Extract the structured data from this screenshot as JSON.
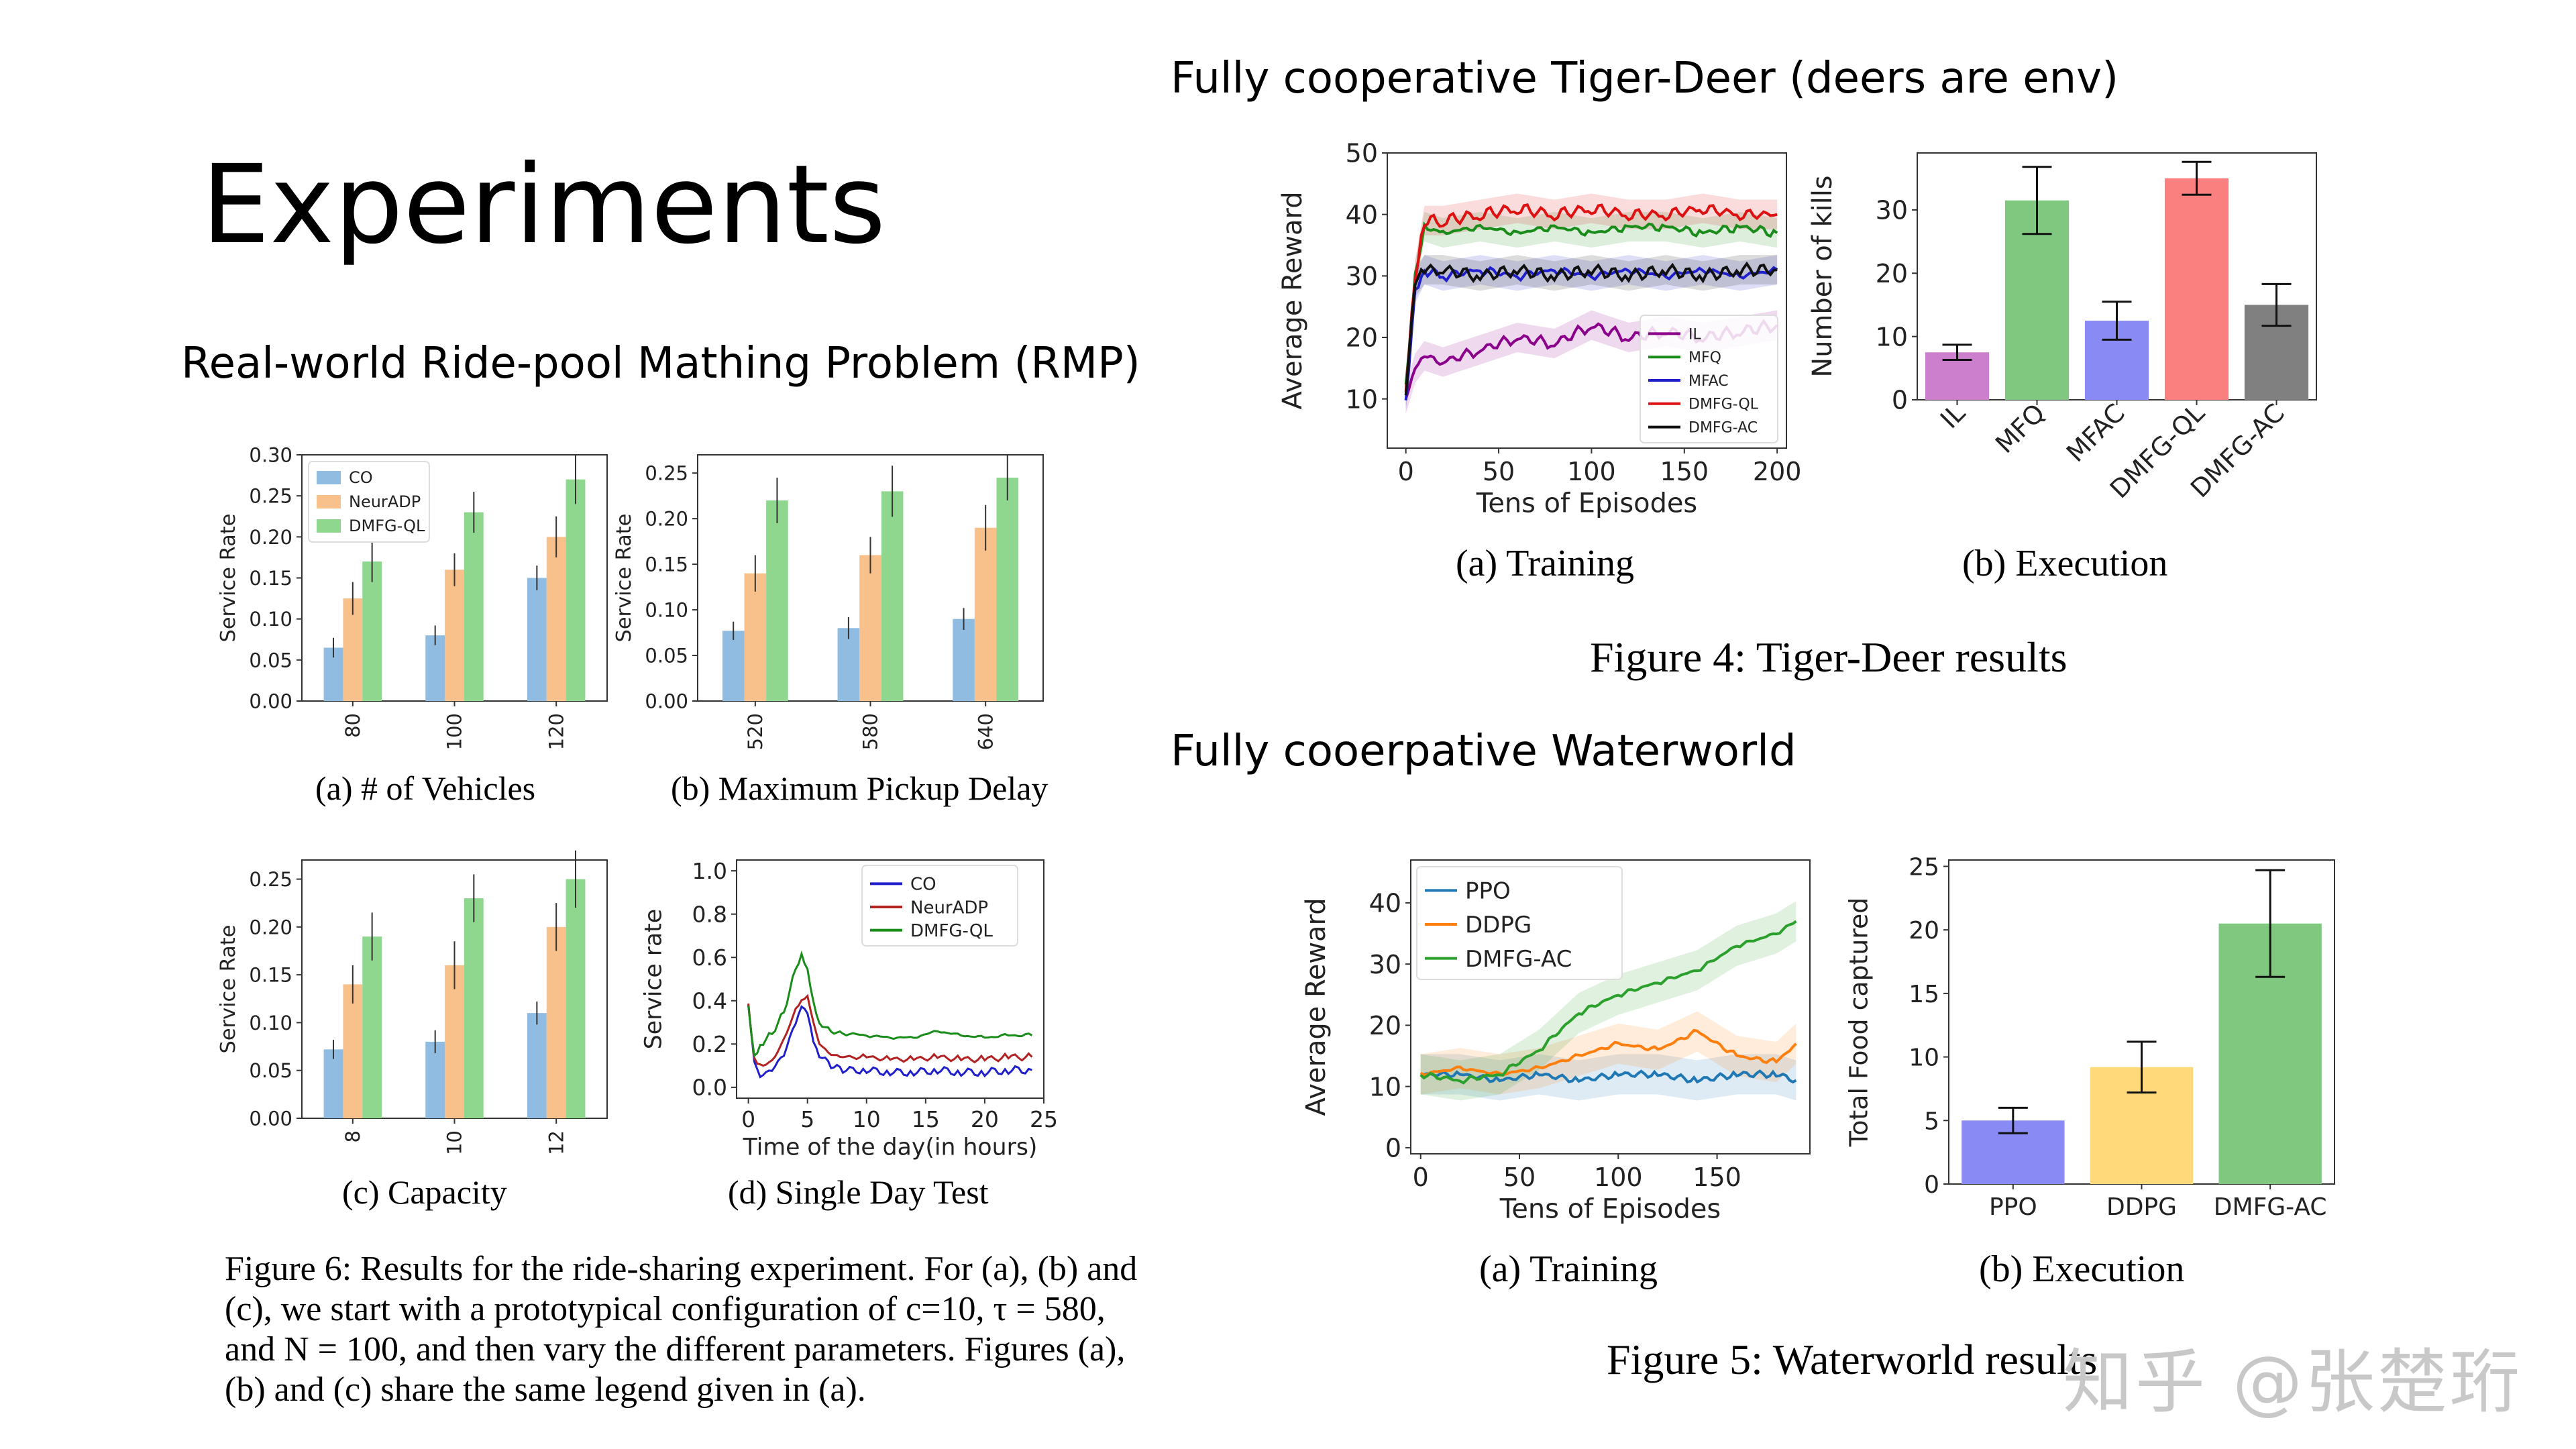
{
  "slide": {
    "title": "Experiments",
    "rmp_heading": "Real-world Ride-pool Mathing Problem (RMP)",
    "tiger_heading": "Fully cooperative Tiger-Deer (deers are env)",
    "water_heading": "Fully cooerpative Waterworld",
    "fig4_caption": "Figure 4: Tiger-Deer results",
    "fig5_caption": "Figure 5: Waterworld results",
    "fig6_caption": "Figure 6: Results for the ride-sharing experiment. For (a), (b) and (c), we start with a prototypical configuration of c=10, τ = 580, and N = 100, and then vary the different parameters. Figures (a), (b) and (c) share the same legend given in (a).",
    "watermark": "知乎 @张楚珩"
  },
  "colors": {
    "co": "#8fbce0",
    "neuradp": "#f8c08a",
    "dmfg_ql": "#8fd68f",
    "err": "#333333",
    "il": "#cc7fcc",
    "mfq": "#80c880",
    "mfac": "#8a8af5",
    "dmfg_ql_red": "#fa8080",
    "dmfg_ac_gray": "#808080",
    "ppo_bar": "#8a8af5",
    "ddpg_bar": "#ffd97a",
    "dmfgac_bar": "#80c880"
  },
  "chart_data": [
    {
      "id": "rmp_a",
      "type": "bar",
      "caption": "(a) # of Vehicles",
      "ylabel": "Service Rate",
      "ylim": [
        0,
        0.3
      ],
      "yticks": [
        "0.00",
        "0.05",
        "0.10",
        "0.15",
        "0.20",
        "0.25",
        "0.30"
      ],
      "categories": [
        "80",
        "100",
        "120"
      ],
      "legend": "top-left",
      "series": [
        {
          "name": "CO",
          "values": [
            0.065,
            0.08,
            0.15
          ],
          "errors": [
            0.012,
            0.012,
            0.015
          ]
        },
        {
          "name": "NeurADP",
          "values": [
            0.125,
            0.16,
            0.2
          ],
          "errors": [
            0.02,
            0.02,
            0.025
          ]
        },
        {
          "name": "DMFG-QL",
          "values": [
            0.17,
            0.23,
            0.27
          ],
          "errors": [
            0.025,
            0.025,
            0.03
          ]
        }
      ]
    },
    {
      "id": "rmp_b",
      "type": "bar",
      "caption": "(b) Maximum Pickup Delay",
      "ylabel": "Service Rate",
      "ylim": [
        0,
        0.27
      ],
      "yticks": [
        "0.00",
        "0.05",
        "0.10",
        "0.15",
        "0.20",
        "0.25"
      ],
      "categories": [
        "520",
        "580",
        "640"
      ],
      "series": [
        {
          "name": "CO",
          "values": [
            0.077,
            0.08,
            0.09
          ],
          "errors": [
            0.01,
            0.012,
            0.012
          ]
        },
        {
          "name": "NeurADP",
          "values": [
            0.14,
            0.16,
            0.19
          ],
          "errors": [
            0.02,
            0.02,
            0.025
          ]
        },
        {
          "name": "DMFG-QL",
          "values": [
            0.22,
            0.23,
            0.245
          ],
          "errors": [
            0.025,
            0.028,
            0.025
          ]
        }
      ]
    },
    {
      "id": "rmp_c",
      "type": "bar",
      "caption": "(c) Capacity",
      "ylabel": "Service Rate",
      "ylim": [
        0,
        0.27
      ],
      "yticks": [
        "0.00",
        "0.05",
        "0.10",
        "0.15",
        "0.20",
        "0.25"
      ],
      "categories": [
        "8",
        "10",
        "12"
      ],
      "series": [
        {
          "name": "CO",
          "values": [
            0.072,
            0.08,
            0.11
          ],
          "errors": [
            0.01,
            0.012,
            0.012
          ]
        },
        {
          "name": "NeurADP",
          "values": [
            0.14,
            0.16,
            0.2
          ],
          "errors": [
            0.02,
            0.025,
            0.025
          ]
        },
        {
          "name": "DMFG-QL",
          "values": [
            0.19,
            0.23,
            0.25
          ],
          "errors": [
            0.025,
            0.025,
            0.03
          ]
        }
      ]
    },
    {
      "id": "rmp_d",
      "type": "line",
      "caption": "(d) Single Day Test",
      "xlabel": "Time of the day(in hours)",
      "ylabel": "Service rate",
      "xlim": [
        -1,
        25
      ],
      "ylim": [
        -0.05,
        1.05
      ],
      "xticks": [
        "0",
        "5",
        "10",
        "15",
        "20",
        "25"
      ],
      "yticks": [
        "0.0",
        "0.2",
        "0.4",
        "0.6",
        "0.8",
        "1.0"
      ],
      "legend": "top-right",
      "series": [
        {
          "name": "CO",
          "color": "#1f1fcc",
          "x": [
            0,
            0.5,
            1,
            2,
            3,
            4,
            4.5,
            5,
            5.5,
            6,
            7,
            8,
            10,
            12,
            14,
            16,
            18,
            20,
            22,
            24
          ],
          "y": [
            0.38,
            0.12,
            0.05,
            0.08,
            0.15,
            0.3,
            0.38,
            0.35,
            0.22,
            0.15,
            0.1,
            0.08,
            0.08,
            0.07,
            0.07,
            0.08,
            0.07,
            0.07,
            0.08,
            0.08
          ]
        },
        {
          "name": "NeurADP",
          "color": "#b22222",
          "x": [
            0,
            0.5,
            1,
            2,
            3,
            4,
            4.5,
            5,
            5.5,
            6,
            7,
            8,
            10,
            12,
            14,
            16,
            18,
            20,
            22,
            24
          ],
          "y": [
            0.38,
            0.13,
            0.1,
            0.12,
            0.22,
            0.36,
            0.4,
            0.42,
            0.3,
            0.2,
            0.15,
            0.14,
            0.14,
            0.13,
            0.13,
            0.14,
            0.13,
            0.13,
            0.14,
            0.14
          ]
        },
        {
          "name": "DMFG-QL",
          "color": "#1a8c1a",
          "x": [
            0,
            0.5,
            1,
            2,
            3,
            4,
            4.5,
            5,
            5.5,
            6,
            7,
            8,
            10,
            12,
            14,
            16,
            18,
            20,
            22,
            24
          ],
          "y": [
            0.38,
            0.15,
            0.2,
            0.25,
            0.35,
            0.55,
            0.62,
            0.55,
            0.4,
            0.3,
            0.26,
            0.25,
            0.24,
            0.23,
            0.23,
            0.26,
            0.24,
            0.23,
            0.24,
            0.24
          ]
        }
      ]
    },
    {
      "id": "td_a",
      "type": "line",
      "caption": "(a)  Training",
      "xlabel": "Tens of Episodes",
      "ylabel": "Average Reward",
      "xlim": [
        -10,
        205
      ],
      "ylim": [
        2,
        50
      ],
      "xticks": [
        "0",
        "50",
        "100",
        "150",
        "200"
      ],
      "yticks": [
        "10",
        "20",
        "30",
        "40",
        "50"
      ],
      "legend": "bottom-right",
      "series": [
        {
          "name": "IL",
          "color": "#8b008b",
          "x": [
            0,
            5,
            10,
            20,
            40,
            60,
            80,
            100,
            120,
            140,
            160,
            180,
            200
          ],
          "y": [
            10,
            15,
            17,
            16,
            18,
            20,
            19,
            22,
            20,
            21,
            20,
            21,
            22
          ]
        },
        {
          "name": "MFQ",
          "color": "#1a8c1a",
          "x": [
            0,
            5,
            10,
            20,
            40,
            60,
            80,
            100,
            120,
            140,
            160,
            180,
            200
          ],
          "y": [
            12,
            30,
            38,
            37,
            38,
            37,
            38,
            37,
            38,
            38,
            37,
            38,
            37
          ]
        },
        {
          "name": "MFAC",
          "color": "#1f1fcc",
          "x": [
            0,
            5,
            10,
            20,
            40,
            60,
            80,
            100,
            120,
            140,
            160,
            180,
            200
          ],
          "y": [
            10,
            28,
            31,
            30,
            31,
            30,
            31,
            30,
            31,
            30,
            31,
            30,
            31
          ]
        },
        {
          "name": "DMFG-QL",
          "color": "#dd1111",
          "x": [
            0,
            5,
            10,
            20,
            40,
            60,
            80,
            100,
            120,
            140,
            160,
            180,
            200
          ],
          "y": [
            12,
            30,
            39,
            39,
            40,
            41,
            40,
            41,
            40,
            40,
            41,
            40,
            40
          ]
        },
        {
          "name": "DMFG-AC",
          "color": "#111111",
          "x": [
            0,
            5,
            10,
            20,
            40,
            60,
            80,
            100,
            120,
            140,
            160,
            180,
            200
          ],
          "y": [
            11,
            29,
            31,
            31,
            30,
            31,
            30,
            31,
            30,
            31,
            30,
            31,
            31
          ]
        }
      ]
    },
    {
      "id": "td_b",
      "type": "bar",
      "caption": "(b)  Execution",
      "ylabel": "Number of kills",
      "ylim": [
        0,
        39
      ],
      "yticks": [
        "0",
        "10",
        "20",
        "30"
      ],
      "categories": [
        "IL",
        "MFQ",
        "MFAC",
        "DMFG-QL",
        "DMFG-AC"
      ],
      "values": [
        7.5,
        31.5,
        12.5,
        35,
        15
      ],
      "errors": [
        1.2,
        5.3,
        3.0,
        2.6,
        3.3
      ]
    },
    {
      "id": "ww_a",
      "type": "line",
      "caption": "(a)  Training",
      "xlabel": "Tens of Episodes",
      "ylabel": "Average Reward",
      "xlim": [
        -5,
        197
      ],
      "ylim": [
        -1,
        47
      ],
      "xticks": [
        "0",
        "50",
        "100",
        "150"
      ],
      "yticks": [
        "0",
        "10",
        "20",
        "30",
        "40"
      ],
      "legend": "top-left",
      "series": [
        {
          "name": "PPO",
          "color": "#1f77b4",
          "x": [
            0,
            20,
            40,
            60,
            80,
            100,
            120,
            140,
            160,
            180,
            190
          ],
          "y": [
            12,
            12,
            11,
            12,
            11,
            12,
            12,
            11,
            12,
            12,
            11
          ]
        },
        {
          "name": "DDPG",
          "color": "#ff7f0e",
          "x": [
            0,
            20,
            40,
            60,
            80,
            100,
            120,
            140,
            160,
            180,
            190
          ],
          "y": [
            12,
            13,
            12,
            13,
            15,
            17,
            16,
            19,
            15,
            14,
            17
          ]
        },
        {
          "name": "DMFG-AC",
          "color": "#2ca02c",
          "x": [
            0,
            20,
            40,
            60,
            80,
            100,
            120,
            140,
            160,
            180,
            190
          ],
          "y": [
            12,
            11,
            12,
            16,
            22,
            25,
            27,
            29,
            33,
            35,
            37
          ]
        }
      ]
    },
    {
      "id": "ww_b",
      "type": "bar",
      "caption": "(b)  Execution",
      "ylabel": "Total Food captured",
      "ylim": [
        0,
        25.5
      ],
      "yticks": [
        "0",
        "5",
        "10",
        "15",
        "20",
        "25"
      ],
      "categories": [
        "PPO",
        "DDPG",
        "DMFG-AC"
      ],
      "values": [
        5.0,
        9.2,
        20.5
      ],
      "errors": [
        1.0,
        2.0,
        4.2
      ]
    }
  ]
}
